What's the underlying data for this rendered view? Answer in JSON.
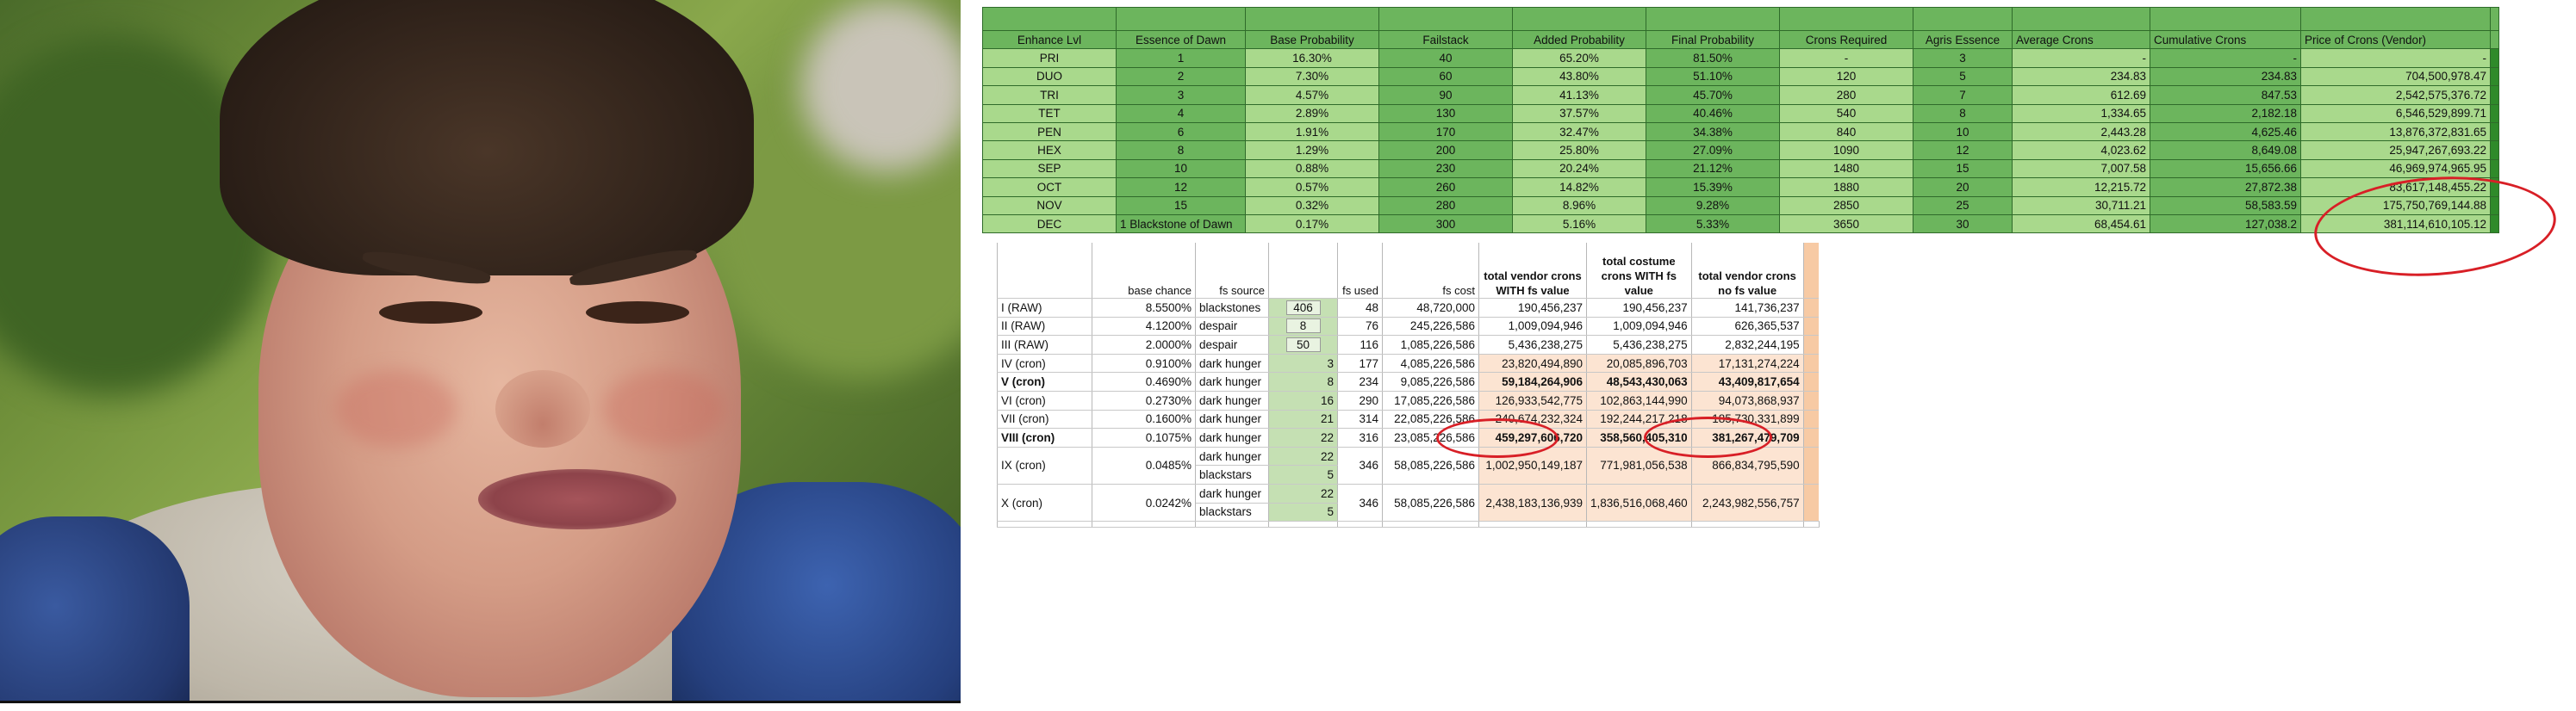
{
  "photo": {
    "subject": "meme-face-photo"
  },
  "enhance_table": {
    "headers": [
      "Enhance Lvl",
      "Essence of Dawn",
      "Base Probability",
      "Failstack",
      "Added Probability",
      "Final Probability",
      "Crons Required",
      "Agris Essence",
      "Average Crons",
      "Cumulative Crons",
      "Price of Crons (Vendor)"
    ],
    "rows": [
      [
        "PRI",
        "1",
        "16.30%",
        "40",
        "65.20%",
        "81.50%",
        "-",
        "3",
        "-",
        "-",
        "-"
      ],
      [
        "DUO",
        "2",
        "7.30%",
        "60",
        "43.80%",
        "51.10%",
        "120",
        "5",
        "234.83",
        "234.83",
        "704,500,978.47"
      ],
      [
        "TRI",
        "3",
        "4.57%",
        "90",
        "41.13%",
        "45.70%",
        "280",
        "7",
        "612.69",
        "847.53",
        "2,542,575,376.72"
      ],
      [
        "TET",
        "4",
        "2.89%",
        "130",
        "37.57%",
        "40.46%",
        "540",
        "8",
        "1,334.65",
        "2,182.18",
        "6,546,529,899.71"
      ],
      [
        "PEN",
        "6",
        "1.91%",
        "170",
        "32.47%",
        "34.38%",
        "840",
        "10",
        "2,443.28",
        "4,625.46",
        "13,876,372,831.65"
      ],
      [
        "HEX",
        "8",
        "1.29%",
        "200",
        "25.80%",
        "27.09%",
        "1090",
        "12",
        "4,023.62",
        "8,649.08",
        "25,947,267,693.22"
      ],
      [
        "SEP",
        "10",
        "0.88%",
        "230",
        "20.24%",
        "21.12%",
        "1480",
        "15",
        "7,007.58",
        "15,656.66",
        "46,969,974,965.95"
      ],
      [
        "OCT",
        "12",
        "0.57%",
        "260",
        "14.82%",
        "15.39%",
        "1880",
        "20",
        "12,215.72",
        "27,872.38",
        "83,617,148,455.22"
      ],
      [
        "NOV",
        "15",
        "0.32%",
        "280",
        "8.96%",
        "9.28%",
        "2850",
        "25",
        "30,711.21",
        "58,583.59",
        "175,750,769,144.88"
      ],
      [
        "DEC",
        "1 Blackstone of Dawn",
        "0.17%",
        "300",
        "5.16%",
        "5.33%",
        "3650",
        "30",
        "68,454.61",
        "127,038.2",
        "381,114,610,105.12"
      ]
    ]
  },
  "fs_table": {
    "headers": {
      "base_chance": "base chance",
      "fs_source": "fs source",
      "fs_used": "fs used",
      "fs_cost": "fs cost",
      "total_vendor_with": "total vendor crons WITH fs value",
      "total_costume_with": "total costume crons WITH fs value",
      "total_vendor_no": "total vendor crons no fs value"
    },
    "rows": [
      {
        "lvl": "I (RAW)",
        "chance": "8.5500%",
        "source": "blackstones",
        "box": "406",
        "stack": "",
        "used": "48",
        "cost": "48,720,000",
        "vw": "190,456,237",
        "cw": "190,456,237",
        "vn": "141,736,237"
      },
      {
        "lvl": "II (RAW)",
        "chance": "4.1200%",
        "source": "despair",
        "box": "8",
        "stack": "",
        "used": "76",
        "cost": "245,226,586",
        "vw": "1,009,094,946",
        "cw": "1,009,094,946",
        "vn": "626,365,537"
      },
      {
        "lvl": "III (RAW)",
        "chance": "2.0000%",
        "source": "despair",
        "box": "50",
        "stack": "",
        "used": "116",
        "cost": "1,085,226,586",
        "vw": "5,436,238,275",
        "cw": "5,436,238,275",
        "vn": "2,832,244,195"
      },
      {
        "lvl": "IV (cron)",
        "chance": "0.9100%",
        "source": "dark hunger",
        "box": "",
        "stack": "3",
        "used": "177",
        "cost": "4,085,226,586",
        "vw": "23,820,494,890",
        "cw": "20,085,896,703",
        "vn": "17,131,274,224"
      },
      {
        "lvl": "V (cron)",
        "chance": "0.4690%",
        "source": "dark hunger",
        "box": "",
        "stack": "8",
        "used": "234",
        "cost": "9,085,226,586",
        "vw": "59,184,264,906",
        "cw": "48,543,430,063",
        "vn": "43,409,817,654"
      },
      {
        "lvl": "VI (cron)",
        "chance": "0.2730%",
        "source": "dark hunger",
        "box": "",
        "stack": "16",
        "used": "290",
        "cost": "17,085,226,586",
        "vw": "126,933,542,775",
        "cw": "102,863,144,990",
        "vn": "94,073,868,937"
      },
      {
        "lvl": "VII (cron)",
        "chance": "0.1600%",
        "source": "dark hunger",
        "box": "",
        "stack": "21",
        "used": "314",
        "cost": "22,085,226,586",
        "vw": "240,674,232,324",
        "cw": "192,244,217,218",
        "vn": "185,730,331,899"
      },
      {
        "lvl": "VIII (cron)",
        "chance": "0.1075%",
        "source": "dark hunger",
        "box": "",
        "stack": "22",
        "used": "316",
        "cost": "23,085,226,586",
        "vw": "459,297,606,720",
        "cw": "358,560,405,310",
        "vn": "381,267,479,709"
      },
      {
        "lvl": "IX (cron)",
        "chance": "0.0485%",
        "source_a": "dark hunger",
        "source_b": "blackstars",
        "stack_a": "22",
        "stack_b": "5",
        "used": "346",
        "cost": "58,085,226,586",
        "vw": "1,002,950,149,187",
        "cw": "771,981,056,538",
        "vn": "866,834,795,590"
      },
      {
        "lvl": "X (cron)",
        "chance": "0.0242%",
        "source_a": "dark hunger",
        "source_b": "blackstars",
        "stack_a": "22",
        "stack_b": "5",
        "used": "346",
        "cost": "58,085,226,586",
        "vw": "2,438,183,136,939",
        "cw": "1,836,516,068,460",
        "vn": "2,243,982,556,757"
      }
    ]
  },
  "colors": {
    "green_light": "#a9d98c",
    "green_dark": "#6cb55d",
    "peach": "#fce4d2",
    "annotation_red": "#d81f26"
  }
}
